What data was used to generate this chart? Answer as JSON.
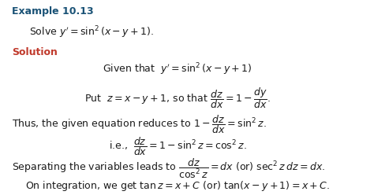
{
  "title": "Example 10.13",
  "problem": "Solve $y'=\\sin^2(x-y+1)$.",
  "solution_label": "Solution",
  "line1": "Given that  $y' = \\sin^2(x-y+1)$",
  "line2": "Put  $z = x-y+1$, so that $\\dfrac{dz}{dx}=1-\\dfrac{dy}{dx}$.",
  "line3": "Thus, the given equation reduces to $1-\\dfrac{dz}{dx}=\\sin^2 z$.",
  "line4": "i.e.,  $\\dfrac{dz}{dx} = 1-\\sin^2 z = \\cos^2 z$.",
  "line5": "Separating the variables leads to $\\dfrac{dz}{\\cos^2 z} =  dx$ (or) $\\sec^2 z\\, dz = dx$.",
  "line6": "On integration, we get $\\tan z = x+C$ (or) $\\tan(x-y+1)=x+C$.",
  "bg_color": "#ffffff",
  "title_color": "#1a5276",
  "solution_color": "#c0392b",
  "text_color": "#1a1a1a",
  "fontsize_title": 9,
  "fontsize_text": 9
}
